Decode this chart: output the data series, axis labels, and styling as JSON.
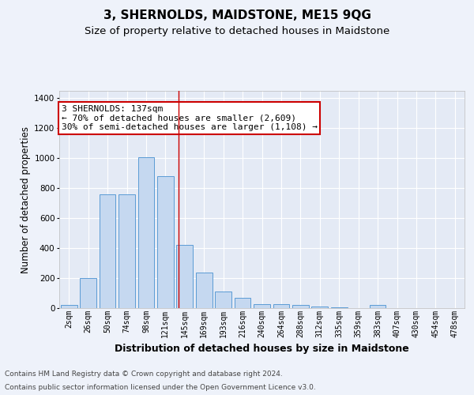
{
  "title": "3, SHERNOLDS, MAIDSTONE, ME15 9QG",
  "subtitle": "Size of property relative to detached houses in Maidstone",
  "xlabel": "Distribution of detached houses by size in Maidstone",
  "ylabel": "Number of detached properties",
  "categories": [
    "2sqm",
    "26sqm",
    "50sqm",
    "74sqm",
    "98sqm",
    "121sqm",
    "145sqm",
    "169sqm",
    "193sqm",
    "216sqm",
    "240sqm",
    "264sqm",
    "288sqm",
    "312sqm",
    "335sqm",
    "359sqm",
    "383sqm",
    "407sqm",
    "430sqm",
    "454sqm",
    "478sqm"
  ],
  "values": [
    20,
    200,
    760,
    760,
    1005,
    880,
    420,
    235,
    110,
    70,
    25,
    25,
    20,
    8,
    5,
    2,
    20,
    2,
    2,
    2,
    2
  ],
  "bar_color": "#c5d8f0",
  "bar_edge_color": "#5b9bd5",
  "annotation_text": "3 SHERNOLDS: 137sqm\n← 70% of detached houses are smaller (2,609)\n30% of semi-detached houses are larger (1,108) →",
  "annotation_box_color": "#ffffff",
  "annotation_box_edge_color": "#cc0000",
  "footnote1": "Contains HM Land Registry data © Crown copyright and database right 2024.",
  "footnote2": "Contains public sector information licensed under the Open Government Licence v3.0.",
  "bg_color": "#eef2fa",
  "plot_bg_color": "#e4eaf5",
  "grid_color": "#ffffff",
  "ylim": [
    0,
    1450
  ],
  "title_fontsize": 11,
  "subtitle_fontsize": 9.5,
  "ylabel_fontsize": 8.5,
  "xlabel_fontsize": 9,
  "tick_fontsize": 7,
  "annotation_fontsize": 8,
  "footnote_fontsize": 6.5
}
